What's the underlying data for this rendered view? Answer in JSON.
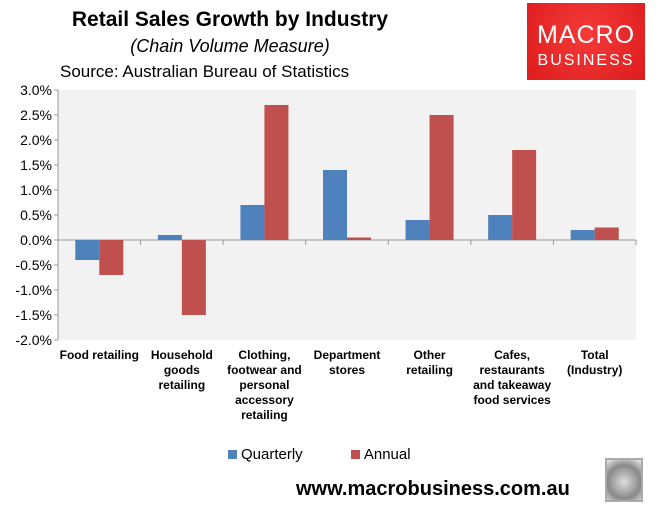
{
  "chart_data": {
    "type": "bar",
    "title": "Retail Sales Growth by Industry",
    "subtitle": "(Chain Volume Measure)",
    "source": "Source: Australian Bureau of Statistics",
    "categories": [
      "Food retailing",
      "Household\ngoods\nretailing",
      "Clothing,\nfootwear and\npersonal\naccessory\nretailing",
      "Department\nstores",
      "Other\nretailing",
      "Cafes,\nrestaurants\nand takeaway\nfood services",
      "Total\n(Industry)"
    ],
    "series": [
      {
        "name": "Quarterly",
        "color": "#4f81bd",
        "values": [
          -0.4,
          0.1,
          0.7,
          1.4,
          0.4,
          0.5,
          0.2
        ]
      },
      {
        "name": "Annual",
        "color": "#c0504d",
        "values": [
          -0.7,
          -1.5,
          2.7,
          0.05,
          2.5,
          1.8,
          0.25
        ]
      }
    ],
    "ylim": [
      -2.0,
      3.0
    ],
    "yticks": [
      "3.0%",
      "2.5%",
      "2.0%",
      "1.5%",
      "1.0%",
      "0.5%",
      "0.0%",
      "-0.5%",
      "-1.0%",
      "-1.5%",
      "-2.0%"
    ],
    "grid": false,
    "legend_position": "bottom",
    "plot_background": "#f2f2f2"
  },
  "logo": {
    "line1": "MACRO",
    "line2": "BUSINESS",
    "color": "#e32222"
  },
  "url": "www.macrobusiness.com.au",
  "icons": {
    "fox": "fox-head-logo"
  }
}
